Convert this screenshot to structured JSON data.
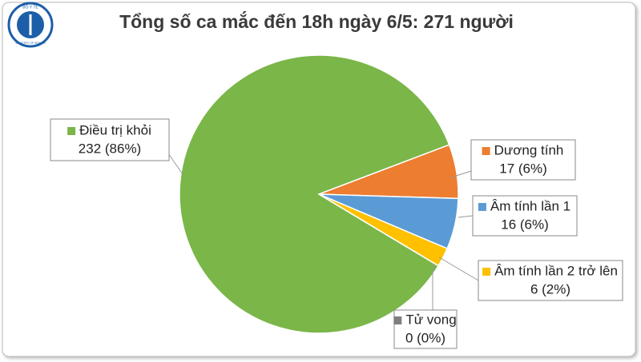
{
  "logo": {
    "top": "BỘ Y TẾ",
    "bottom": "MINISTRY OF HEALTH"
  },
  "chart_data": {
    "type": "pie",
    "title": "Tổng số ca mắc đến 18h ngày 6/5: 271 người",
    "categories": [
      "Điều trị khỏi",
      "Dương tính",
      "Âm tính lần 1",
      "Âm tính lần 2 trở lên",
      "Tử vong"
    ],
    "values": [
      232,
      17,
      16,
      6,
      0
    ],
    "value_labels": [
      "232 (86%)",
      "17 (6%)",
      "16 (6%)",
      "6 (2%)",
      "0 (0%)"
    ],
    "colors": [
      "#7ab648",
      "#ed7d31",
      "#5b9bd5",
      "#ffc000",
      "#7f7f7f"
    ]
  }
}
